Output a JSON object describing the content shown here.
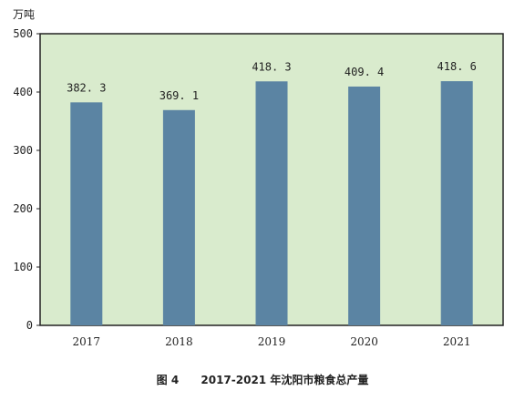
{
  "chart_data": {
    "type": "bar",
    "unit_label": "万吨",
    "categories": [
      "2017",
      "2018",
      "2019",
      "2020",
      "2021"
    ],
    "values": [
      382.3,
      369.1,
      418.3,
      409.4,
      418.6
    ],
    "value_labels": [
      "382. 3",
      "369. 1",
      "418. 3",
      "409. 4",
      "418. 6"
    ],
    "ylim": [
      0,
      500
    ],
    "yticks": [
      0,
      100,
      200,
      300,
      400,
      500
    ],
    "grid": false,
    "colors": {
      "plot_bg": "#d9ebcd",
      "bar": "#5b84a3",
      "axis": "#222222"
    }
  },
  "caption": {
    "figure_no": "图 4",
    "title": "2017-2021 年沈阳市粮食总产量"
  }
}
